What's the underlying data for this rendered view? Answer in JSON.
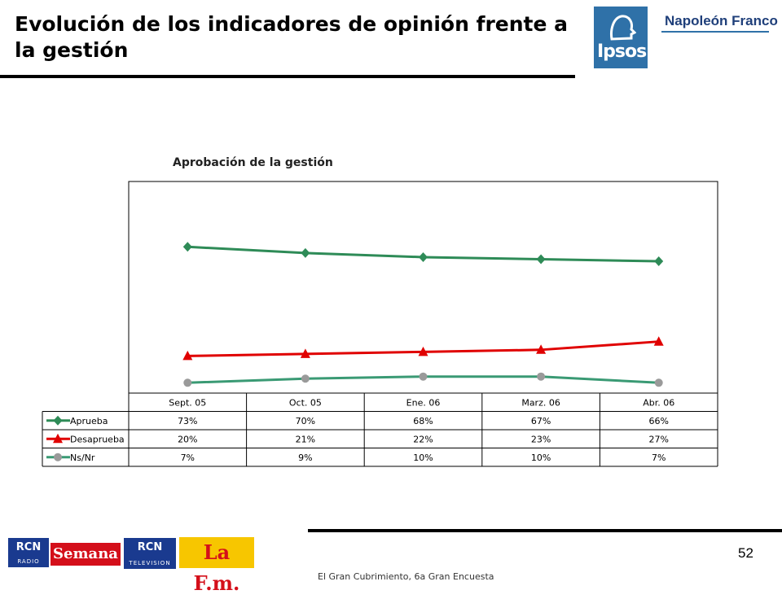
{
  "header": {
    "title": "Evolución de los indicadores de opinión frente a la gestión",
    "logo_ipsos": "Ipsos",
    "logo_napoleon": "Napoleón Franco"
  },
  "chart_data": {
    "type": "line",
    "title": "Aprobación de la gestión",
    "categories": [
      "Sept. 05",
      "Oct. 05",
      "Ene. 06",
      "Marz. 06",
      "Abr. 06"
    ],
    "ylim": [
      0,
      100
    ],
    "grid": false,
    "legend": "table-left",
    "series": [
      {
        "name": "Aprueba",
        "values": [
          73,
          70,
          68,
          67,
          66
        ],
        "labels": [
          "73%",
          "70%",
          "68%",
          "67%",
          "66%"
        ],
        "color": "#2e8b57",
        "marker": "diamond"
      },
      {
        "name": "Desaprueba",
        "values": [
          20,
          21,
          22,
          23,
          27
        ],
        "labels": [
          "20%",
          "21%",
          "22%",
          "23%",
          "27%"
        ],
        "color": "#e00000",
        "marker": "triangle"
      },
      {
        "name": "Ns/Nr",
        "values": [
          7,
          9,
          10,
          10,
          7
        ],
        "labels": [
          "7%",
          "9%",
          "10%",
          "10%",
          "7%"
        ],
        "color": "#3a9a74",
        "marker": "circle",
        "marker_color": "#9a9a9a"
      }
    ]
  },
  "footer": {
    "page_number": "52",
    "caption": "El Gran Cubrimiento, 6a Gran Encuesta",
    "logo_rcn_radio": "RCN",
    "logo_rcn_radio_sub": "RADIO",
    "logo_semana": "Semana",
    "logo_rcn_tv": "RCN",
    "logo_rcn_tv_sub": "TELEVISION",
    "logo_lafm": "La F.m."
  }
}
